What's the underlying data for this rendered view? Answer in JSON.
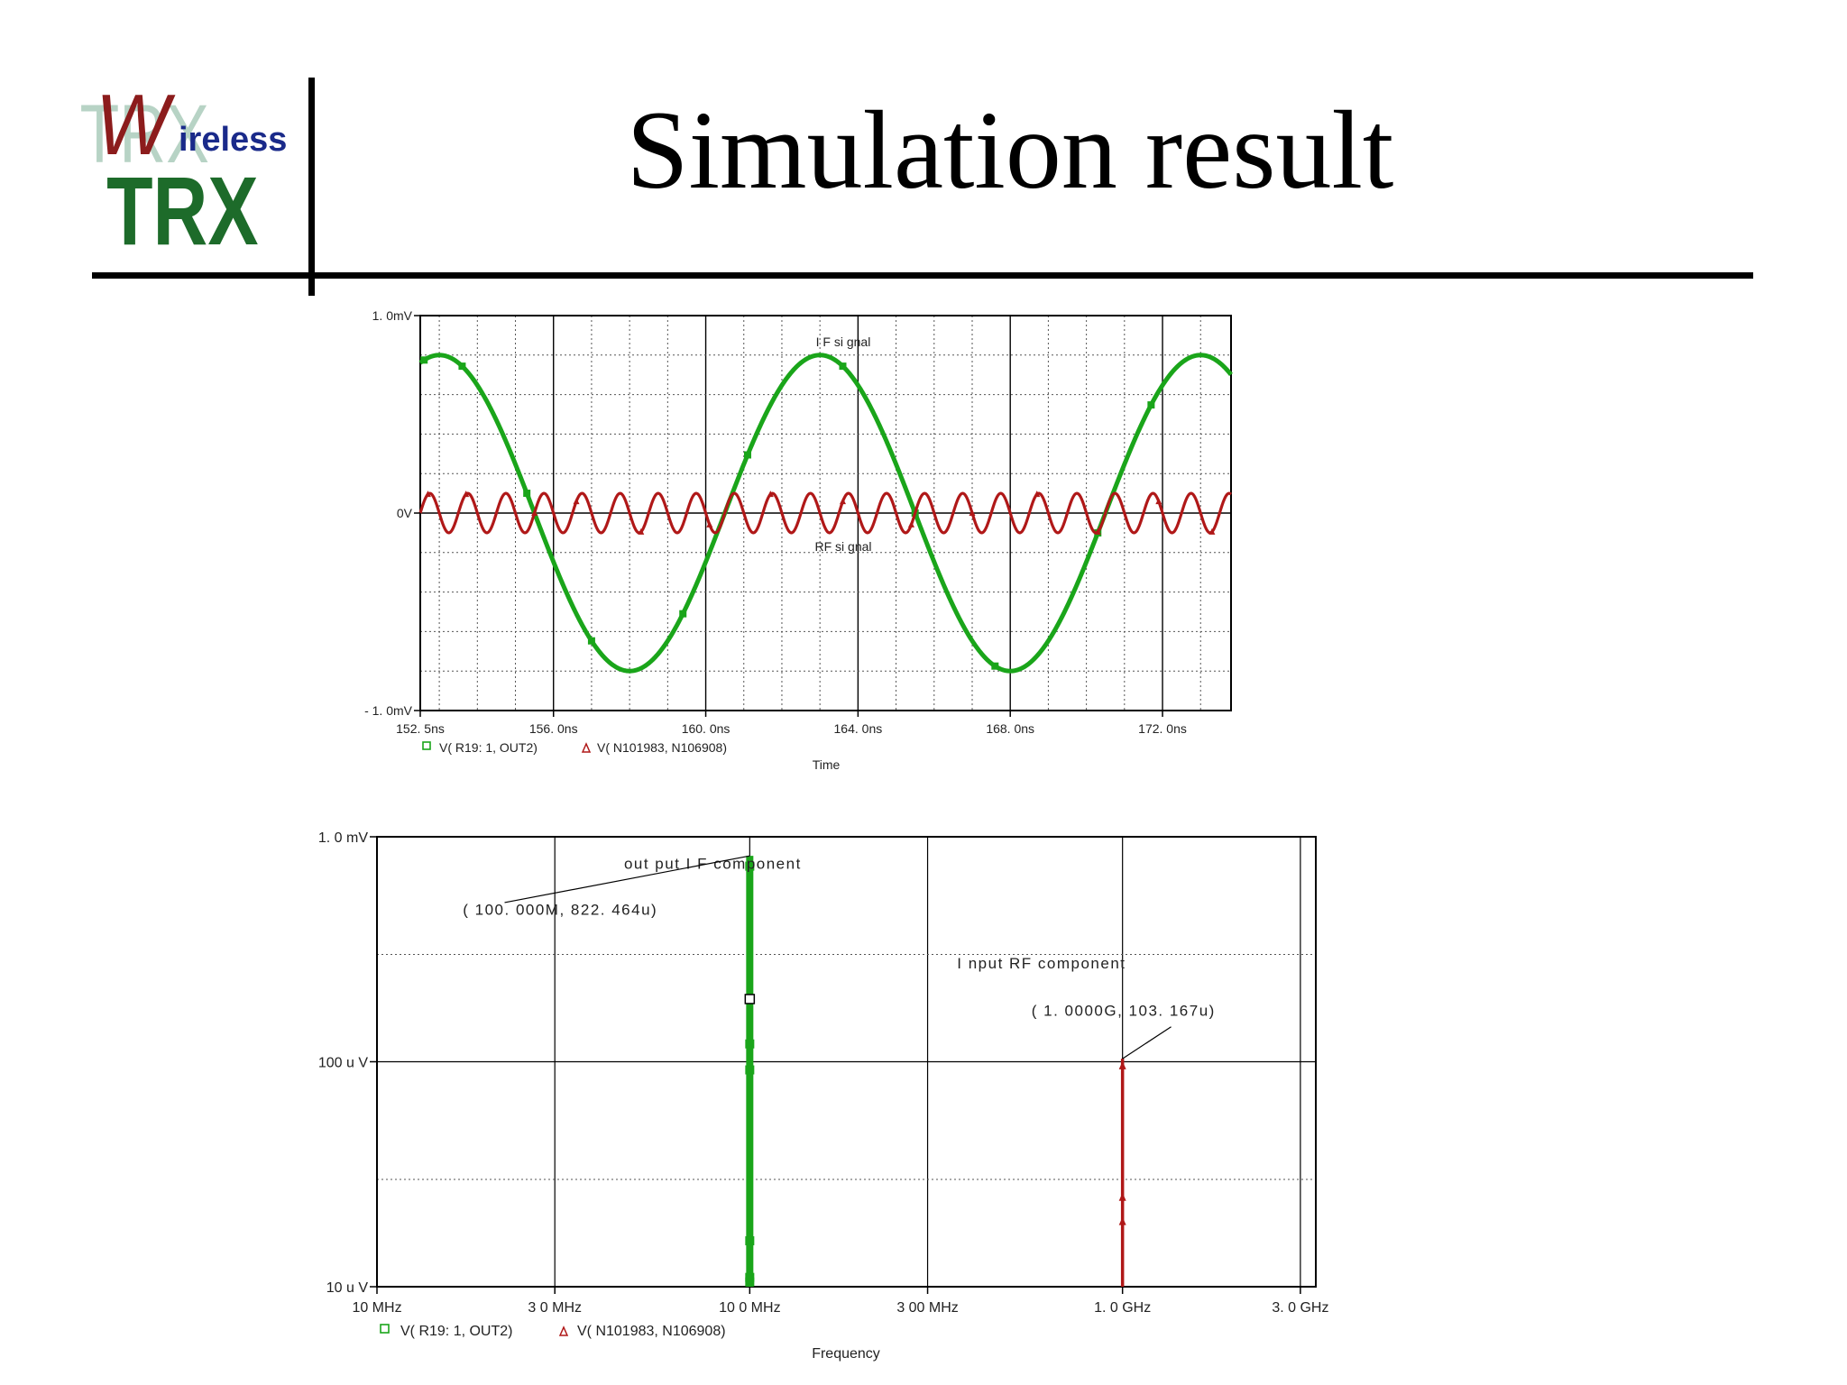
{
  "slide": {
    "title": "Simulation result",
    "logo": {
      "big_letter": "W",
      "word": "ireless",
      "brand": "TRX",
      "watermark": "TRX"
    }
  },
  "colors": {
    "green": "#1aa51a",
    "red": "#b01818",
    "logo_red": "#8c1c1c",
    "logo_navy": "#1a2a8a",
    "logo_green": "#1d6b2a",
    "logo_watermark": "#b7d3c5"
  },
  "chart_data": [
    {
      "type": "line",
      "xlabel": "Time",
      "ylabel": "",
      "xlim": [
        152.5,
        173.8
      ],
      "ylim": [
        -1.0,
        1.0
      ],
      "x_ticks": [
        152.5,
        156.0,
        160.0,
        164.0,
        168.0,
        172.0
      ],
      "x_tick_labels": [
        "152. 5ns",
        "156. 0ns",
        "160. 0ns",
        "164. 0ns",
        "168. 0ns",
        "172. 0ns"
      ],
      "y_tick_labels": [
        "1. 0mV",
        "0V",
        "- 1. 0mV"
      ],
      "grid": true,
      "series": [
        {
          "name": "V( R19: 1, OUT2)",
          "color": "#1aa51a",
          "kind": "sine",
          "amplitude": 0.8,
          "period": 10.0,
          "peak_at": 153.0,
          "marker_x": [
            152.6,
            153.6,
            155.3,
            157.0,
            159.4,
            161.1,
            163.6,
            165.5,
            167.6,
            170.3,
            171.7
          ]
        },
        {
          "name": "V( N101983, N106908)",
          "color": "#b01818",
          "kind": "sine",
          "amplitude": 0.1,
          "period": 1.0,
          "peak_at": 152.75,
          "marker_x": [
            152.7,
            153.7,
            155.5,
            156.6,
            158.3,
            160.1,
            161.7,
            163.6,
            165.4,
            167.0,
            168.7,
            170.3,
            171.9,
            173.3
          ]
        }
      ],
      "annotations": [
        {
          "text": "I F   si gnal",
          "x": 163.0,
          "y": 0.83
        },
        {
          "text": "RF   si gnal",
          "x": 163.0,
          "y": -0.15
        }
      ]
    },
    {
      "type": "line",
      "xlabel": "Frequency",
      "ylabel": "",
      "xscale": "log",
      "yscale": "log",
      "xlim": [
        10000000,
        3300000000
      ],
      "ylim": [
        1e-05,
        0.001
      ],
      "x_ticks": [
        10000000,
        30000000,
        100000000,
        300000000,
        1000000000,
        3000000000
      ],
      "x_tick_labels": [
        "10 MHz",
        "3 0 MHz",
        "10 0 MHz",
        "3 00 MHz",
        "1. 0 GHz",
        "3. 0 GHz"
      ],
      "y_ticks": [
        0.001,
        0.0001,
        1e-05
      ],
      "y_tick_labels": [
        "1. 0 mV",
        "100 u V",
        "10 u V"
      ],
      "grid": true,
      "series": [
        {
          "name": "V( R19: 1, OUT2)",
          "color": "#1aa51a",
          "x": [
            100000000,
            100000000
          ],
          "y": [
            1e-05,
            0.000822464
          ],
          "marker_y": [
            0.00074,
            0.00012,
            9.2e-05,
            1.6e-05,
            1.1e-05,
            1.05e-05
          ]
        },
        {
          "name": "V( N101983, N106908)",
          "color": "#b01818",
          "x": [
            1000000000,
            1000000000
          ],
          "y": [
            1e-05,
            0.000103167
          ],
          "marker_y": [
            9.6e-05,
            2.5e-05,
            1.95e-05
          ]
        }
      ],
      "annotations": [
        {
          "text": "out put   I F   component",
          "x": 46000000,
          "y": 0.00072
        },
        {
          "text": "( 100. 000M, 822. 464u)",
          "x": 17000000,
          "y": 0.00045
        },
        {
          "text": "I nput   RF   component",
          "x": 360000000,
          "y": 0.00026
        },
        {
          "text": "( 1. 0000G, 103. 167u)",
          "x": 570000000,
          "y": 0.00016
        }
      ]
    }
  ]
}
